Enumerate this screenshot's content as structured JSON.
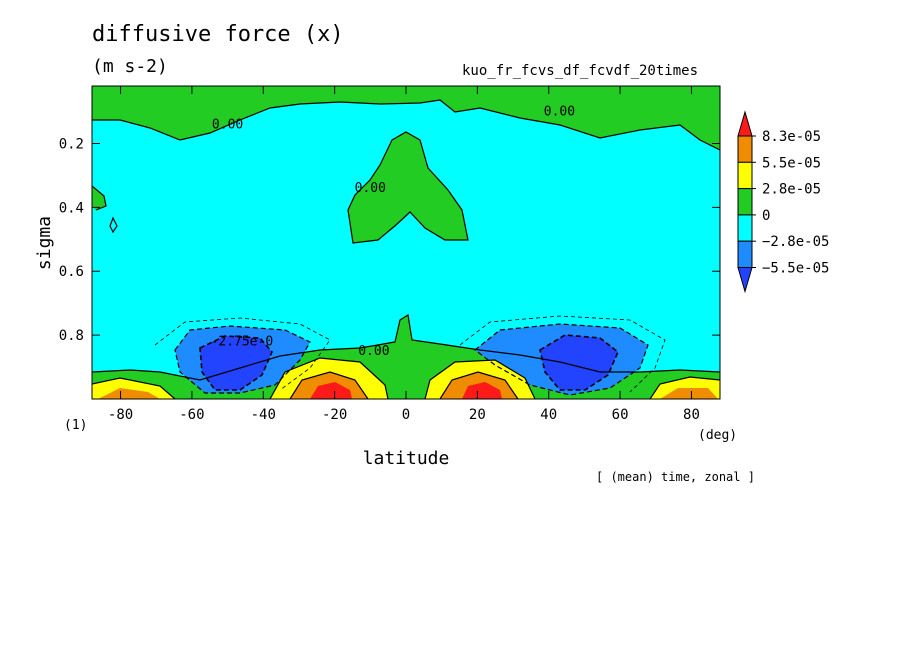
{
  "header": {
    "title": "diffusive force (x)",
    "units": "(m s-2)",
    "run_name": "kuo_fr_fcvs_df_fcvdf_20times"
  },
  "footer": {
    "note": "[ (mean) time, zonal ]"
  },
  "chart_data": {
    "type": "contour",
    "title": "diffusive force (x)",
    "xlabel": "latitude",
    "ylabel": "sigma",
    "x_unit_label": "(deg)",
    "panel_label": "(1)",
    "xlim": [
      -88,
      88
    ],
    "ylim": [
      1.0,
      0.02
    ],
    "x_ticks": [
      -80,
      -60,
      -40,
      -20,
      0,
      20,
      40,
      60,
      80
    ],
    "y_ticks": [
      0.2,
      0.4,
      0.6,
      0.8
    ],
    "contour_labels": [
      {
        "text": "0.00",
        "x": -50,
        "y": 0.14
      },
      {
        "text": "0.00",
        "x": 43,
        "y": 0.1
      },
      {
        "text": "0.00",
        "x": -10,
        "y": 0.34
      },
      {
        "text": "-2.75e-0",
        "x": -46,
        "y": 0.82
      },
      {
        "text": "0.00",
        "x": -9,
        "y": 0.85
      }
    ],
    "colorbar": {
      "labels": [
        "8.3e-05",
        "5.5e-05",
        "2.8e-05",
        "0",
        "−2.8e-05",
        "−5.5e-05"
      ],
      "colors_top_to_bottom": [
        "#ff1a1a",
        "#f08c00",
        "#ffff00",
        "#22cc22",
        "#00ffff",
        "#1e8cff",
        "#2244ff"
      ]
    },
    "fields": {
      "background_band": "#00ffff",
      "positive_band": "#22cc22",
      "negative_band": "#1e8cff",
      "strong_negative": "#2244ff",
      "positive_mid": "#ffff00",
      "positive_high": "#f08c00",
      "positive_peak": "#ff1a1a"
    }
  }
}
